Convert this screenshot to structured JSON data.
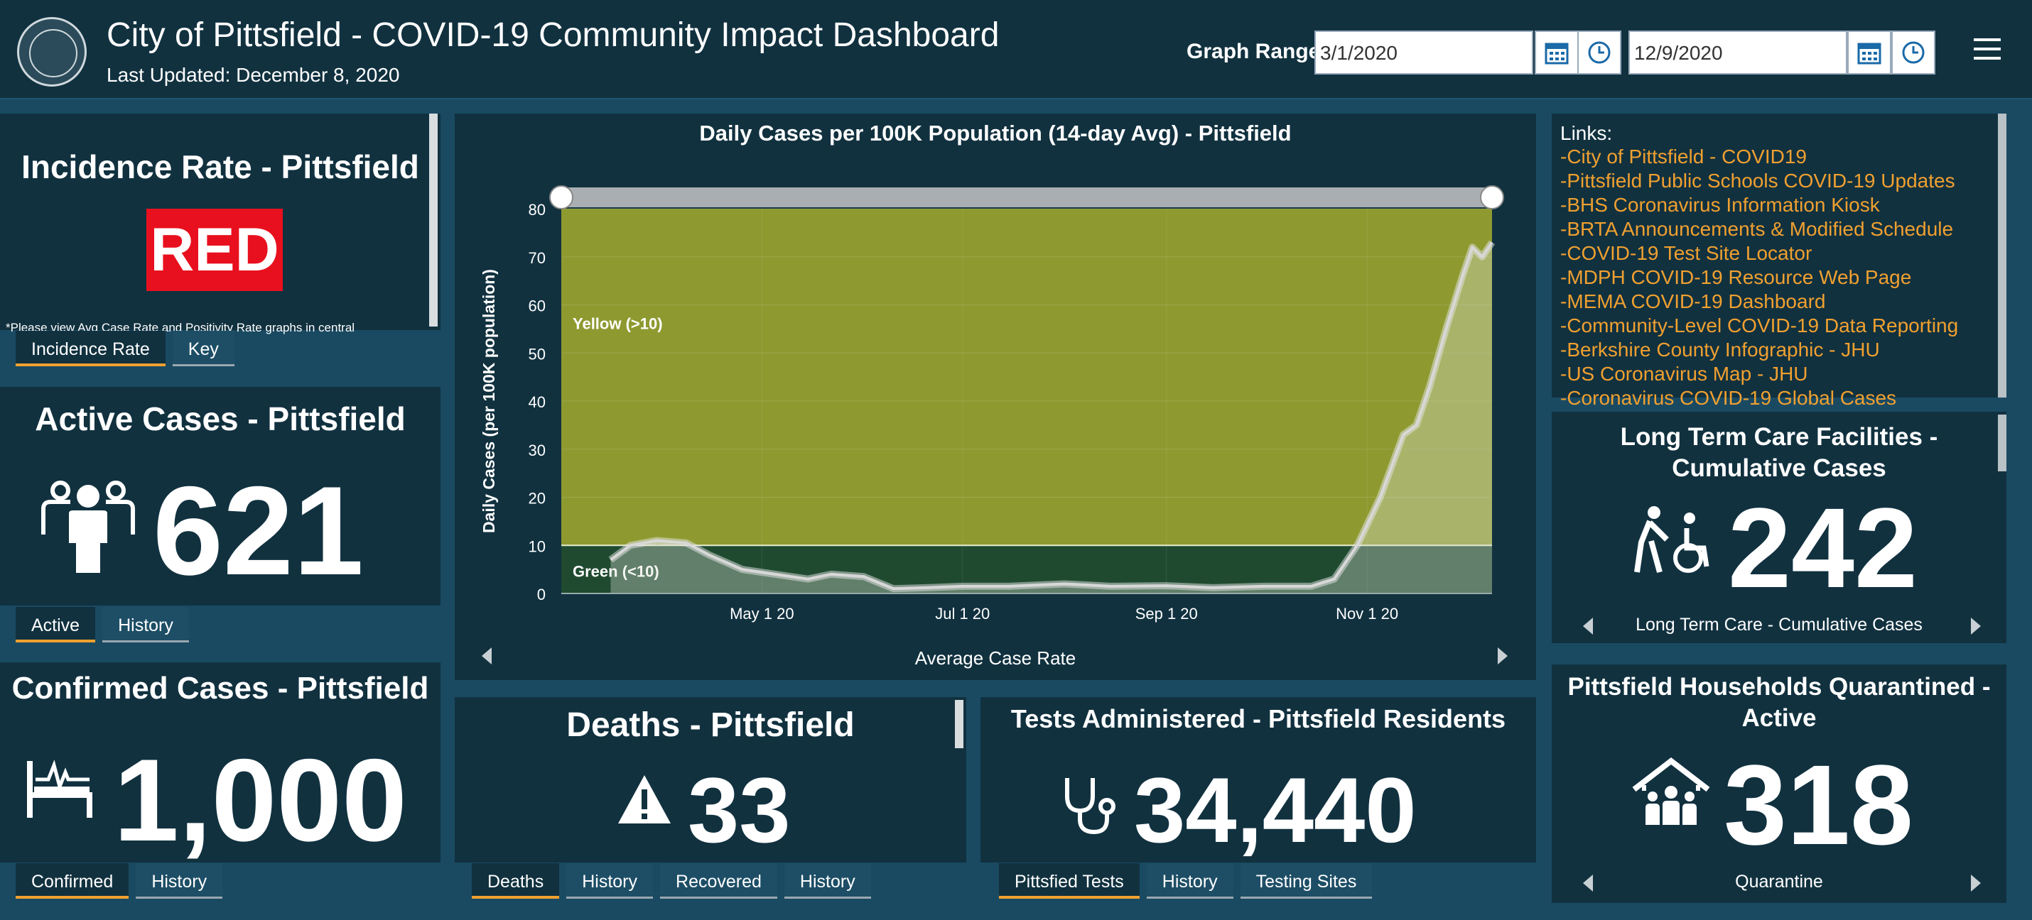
{
  "header": {
    "title": "City of Pittsfield - COVID-19 Community Impact Dashboard",
    "last_updated": "Last Updated: December 8, 2020",
    "graph_range_label": "Graph Range",
    "start_date": "3/1/2020",
    "end_date": "12/9/2020"
  },
  "incidence": {
    "title": "Incidence Rate - Pittsfield",
    "status": "RED",
    "status_color": "#e8101e",
    "note": "*Please view Avg Case Rate and Positivity Rate graphs in central",
    "tabs": [
      "Incidence Rate",
      "Key"
    ]
  },
  "active": {
    "title": "Active Cases - Pittsfield",
    "value": "621",
    "tabs": [
      "Active",
      "History"
    ]
  },
  "confirmed": {
    "title": "Confirmed Cases - Pittsfield",
    "value": "1,000",
    "tabs": [
      "Confirmed",
      "History"
    ]
  },
  "deaths": {
    "title": "Deaths - Pittsfield",
    "value": "33",
    "tabs": [
      "Deaths",
      "History",
      "Recovered",
      "History"
    ]
  },
  "tests": {
    "title": "Tests Administered - Pittsfield Residents",
    "value": "34,440",
    "tabs": [
      "Pittsfied Tests",
      "History",
      "Testing Sites"
    ]
  },
  "ltc": {
    "title_line1": "Long Term Care Facilities -",
    "title_line2": "Cumulative Cases",
    "value": "242",
    "nav_label": "Long Term Care - Cumulative Cases"
  },
  "households": {
    "title_line1": "Pittsfield Households Quarantined -",
    "title_line2": "Active",
    "value": "318",
    "nav_label": "Quarantine"
  },
  "links": {
    "heading": "Links:",
    "items": [
      "-City of Pittsfield - COVID19",
      "-Pittsfield Public Schools COVID-19 Updates",
      "-BHS Coronavirus Information Kiosk",
      "-BRTA Announcements & Modified Schedule",
      "-COVID-19 Test Site Locator",
      "-MDPH COVID-19 Resource Web Page",
      "-MEMA COVID-19 Dashboard",
      "-Community-Level COVID-19 Data Reporting",
      "-Berkshire County Infographic - JHU",
      "-US Coronavirus Map - JHU",
      "-Coronavirus COVID-19 Global Cases"
    ]
  },
  "chart_data": {
    "type": "line",
    "title": "Daily Cases per 100K Population (14-day Avg) - Pittsfield",
    "ylabel": "Daily Cases (per 100K population)",
    "xlabel": "",
    "ylim": [
      0,
      80
    ],
    "yticks": [
      0,
      10,
      20,
      30,
      40,
      50,
      60,
      70,
      80
    ],
    "xticks": [
      {
        "date": "2020-05-01",
        "label": "May 1 20"
      },
      {
        "date": "2020-07-01",
        "label": "Jul 1 20"
      },
      {
        "date": "2020-09-01",
        "label": "Sep 1 20"
      },
      {
        "date": "2020-11-01",
        "label": "Nov 1 20"
      }
    ],
    "xlim": [
      "2020-03-01",
      "2020-12-09"
    ],
    "bands": [
      {
        "label": "Green (<10)",
        "from": 0,
        "to": 10,
        "color": "#1f4a30"
      },
      {
        "label": "Yellow (>10)",
        "from": 10,
        "to": 80,
        "color": "#8e9a30"
      }
    ],
    "series": [
      {
        "points": [
          [
            "2020-03-16",
            7
          ],
          [
            "2020-03-22",
            10
          ],
          [
            "2020-03-30",
            11
          ],
          [
            "2020-04-08",
            10.5
          ],
          [
            "2020-04-15",
            8
          ],
          [
            "2020-04-25",
            5
          ],
          [
            "2020-05-05",
            4
          ],
          [
            "2020-05-15",
            3
          ],
          [
            "2020-05-22",
            4
          ],
          [
            "2020-06-01",
            3.5
          ],
          [
            "2020-06-10",
            1
          ],
          [
            "2020-06-20",
            1.2
          ],
          [
            "2020-07-01",
            1.5
          ],
          [
            "2020-07-15",
            1.5
          ],
          [
            "2020-08-01",
            2
          ],
          [
            "2020-08-15",
            1.5
          ],
          [
            "2020-09-01",
            1.6
          ],
          [
            "2020-09-15",
            1.2
          ],
          [
            "2020-10-01",
            1.5
          ],
          [
            "2020-10-15",
            1.5
          ],
          [
            "2020-10-22",
            3
          ],
          [
            "2020-10-29",
            10
          ],
          [
            "2020-11-05",
            20
          ],
          [
            "2020-11-12",
            33
          ],
          [
            "2020-11-16",
            35
          ],
          [
            "2020-11-20",
            43
          ],
          [
            "2020-11-25",
            55
          ],
          [
            "2020-11-30",
            66
          ],
          [
            "2020-12-03",
            72
          ],
          [
            "2020-12-06",
            70
          ],
          [
            "2020-12-09",
            73
          ]
        ]
      }
    ],
    "nav_label": "Average Case Rate"
  }
}
